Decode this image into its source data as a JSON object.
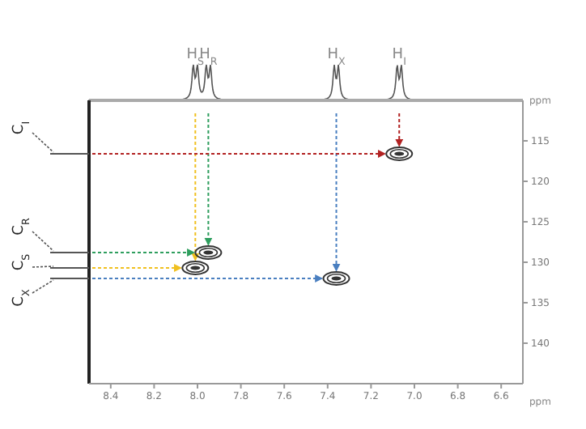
{
  "chart_data": {
    "type": "scatter",
    "xlabel": "ppm",
    "ylabel": "ppm",
    "x": [
      7.07,
      8.01,
      7.95,
      7.36
    ],
    "values": [
      116.6,
      130.7,
      128.8,
      132.0
    ],
    "color": "#333333",
    "xlim": [
      8.5,
      6.5
    ],
    "xticks": [
      8.4,
      8.2,
      {
        "value": 8,
        "label": "8.0"
      },
      7.8,
      7.6,
      7.4,
      7.2,
      {
        "value": 7,
        "label": "7.0"
      },
      6.8,
      6.6
    ],
    "ylim": [
      145,
      110
    ],
    "yticks": [
      115,
      120,
      125,
      130,
      135,
      140
    ],
    "annotations": [
      "H$_{S}$",
      "H$_{R}$",
      "H$_{X}$",
      "H$_{I}$",
      "C$_{I}$",
      "C$_{R}$",
      "C$_{S}$",
      "C$_{X}$"
    ]
  }
}
